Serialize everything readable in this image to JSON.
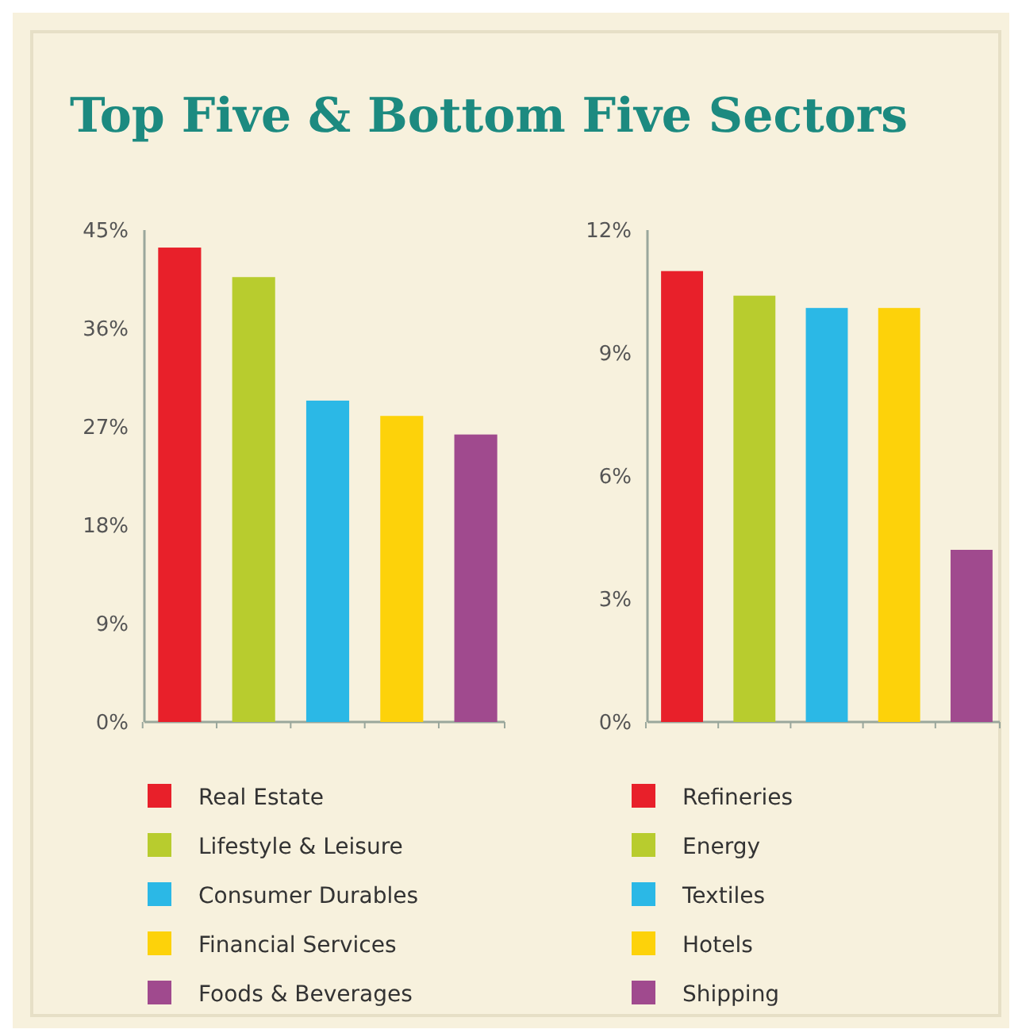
{
  "chart_data": [
    {
      "type": "bar",
      "title": "Top Five & Bottom Five Sectors",
      "categories": [
        null,
        null,
        null,
        null,
        null
      ],
      "series": [
        {
          "name": "Real Estate",
          "color": "#e8202a",
          "values": [
            43.4,
            null,
            null,
            null,
            null
          ]
        },
        {
          "name": "Lifestyle & Leisure",
          "color": "#b8cc2e",
          "values": [
            null,
            40.7,
            null,
            null,
            null
          ]
        },
        {
          "name": "Consumer Durables",
          "color": "#2bb8e6",
          "values": [
            null,
            null,
            29.4,
            null,
            null
          ]
        },
        {
          "name": "Financial Services",
          "color": "#fdd20a",
          "values": [
            null,
            null,
            null,
            28.0,
            null
          ]
        },
        {
          "name": "Foods & Beverages",
          "color": "#a04a8e",
          "values": [
            null,
            null,
            null,
            null,
            26.3
          ]
        }
      ],
      "ylim": [
        0,
        45
      ],
      "yticks": [
        {
          "value": 0,
          "label": "0%"
        },
        {
          "value": 9,
          "label": "9%"
        },
        {
          "value": 18,
          "label": "18%"
        },
        {
          "value": 27,
          "label": "27%"
        },
        {
          "value": 36,
          "label": "36%"
        },
        {
          "value": 45,
          "label": "45%"
        }
      ],
      "legend": "bottom"
    },
    {
      "type": "bar",
      "categories": [
        null,
        null,
        null,
        null,
        null
      ],
      "series": [
        {
          "name": "Refineries",
          "color": "#e8202a",
          "values": [
            11.0,
            null,
            null,
            null,
            null
          ]
        },
        {
          "name": "Energy",
          "color": "#b8cc2e",
          "values": [
            null,
            10.4,
            null,
            null,
            null
          ]
        },
        {
          "name": "Textiles",
          "color": "#2bb8e6",
          "values": [
            null,
            null,
            10.1,
            null,
            null
          ]
        },
        {
          "name": "Hotels",
          "color": "#fdd20a",
          "values": [
            null,
            null,
            null,
            10.1,
            null
          ]
        },
        {
          "name": "Shipping",
          "color": "#a04a8e",
          "values": [
            null,
            null,
            null,
            null,
            4.2
          ]
        }
      ],
      "ylim": [
        0,
        12
      ],
      "yticks": [
        {
          "value": 0,
          "label": "0%"
        },
        {
          "value": 3,
          "label": "3%"
        },
        {
          "value": 6,
          "label": "6%"
        },
        {
          "value": 9,
          "label": "9%"
        },
        {
          "value": 12,
          "label": "12%"
        }
      ],
      "legend": "bottom"
    }
  ]
}
